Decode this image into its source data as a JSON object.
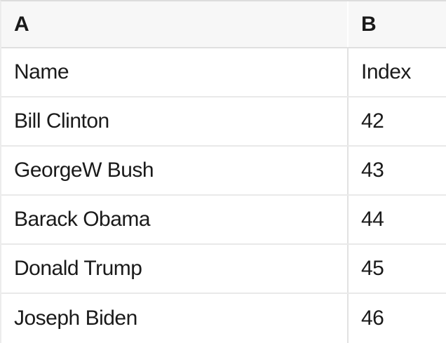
{
  "table": {
    "headers": [
      "A",
      "B"
    ],
    "rows": [
      [
        "Name",
        "Index"
      ],
      [
        "Bill Clinton",
        "42"
      ],
      [
        "GeorgeW Bush",
        "43"
      ],
      [
        "Barack Obama",
        "44"
      ],
      [
        "Donald Trump",
        "45"
      ],
      [
        "Joseph Biden",
        "46"
      ]
    ]
  },
  "colors": {
    "header_background": "#f7f7f7",
    "header_divider": "#ffffff",
    "grid_border": "#e2e2e2",
    "row_border": "#e9e9e9",
    "text": "#1a1a1a"
  }
}
